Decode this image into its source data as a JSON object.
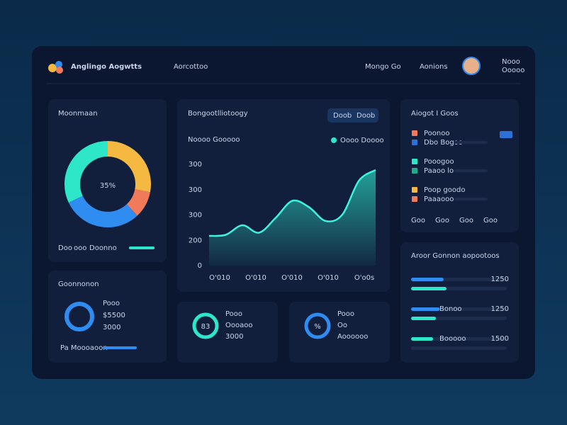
{
  "header": {
    "title": "Anglingo Aogwtts",
    "subtitle": "Aorcottoo",
    "nav": [
      "Mongo Go",
      "Aonions"
    ],
    "user": [
      "Nooo",
      "Ooooo"
    ]
  },
  "donut_card": {
    "title": "Moonmaan",
    "center": "35%",
    "segments": [
      {
        "value": 28,
        "color": "#f5b942"
      },
      {
        "value": 10,
        "color": "#f07a5a"
      },
      {
        "value": 30,
        "color": "#2f8cf0"
      },
      {
        "value": 32,
        "color": "#2ee6c8"
      }
    ],
    "footer": [
      "Doo",
      "ooo",
      "Doonno"
    ]
  },
  "stat_card": {
    "title": "Goonnonon",
    "lines": [
      "Pooo",
      "$5500",
      "3000"
    ],
    "footer": "Pa Moooaoon"
  },
  "area_card": {
    "title": "Bongootlliotoogy",
    "tabs": [
      "Doob",
      "Doob"
    ],
    "legend": [
      "Noooo Gooooo",
      "Oooo Doooo"
    ],
    "ytick_labels": [
      "300",
      "300",
      "300",
      "200",
      "0"
    ],
    "x_labels": [
      "O'010",
      "O'010",
      "O'010",
      "O'010",
      "O'o0s"
    ],
    "values": [
      28,
      29,
      38,
      31,
      45,
      61,
      55,
      42,
      48,
      80,
      90
    ],
    "ylim": [
      0,
      100
    ]
  },
  "mini_cards": [
    {
      "ring": "83",
      "lines": [
        "Pooo",
        "Oooaoo",
        "3000"
      ],
      "color": "#2ee6c8"
    },
    {
      "ring": "%",
      "lines": [
        "Pooo",
        "Oo",
        "Aoooooo"
      ],
      "color": "#2f8cf0"
    }
  ],
  "list_card": {
    "title": "Aiogot I Goos",
    "items": [
      {
        "label": "Poonoo",
        "color": "#f07a5a"
      },
      {
        "label": "Dbo Bogoo",
        "color": "#2f6fd8"
      },
      {
        "label": "Pooogoo",
        "color": "#2ee6c8"
      },
      {
        "label": "Paaoo lo",
        "color": "#1fae8a"
      },
      {
        "label": "Poop goodo",
        "color": "#f5b942"
      },
      {
        "label": "Paaaooo",
        "color": "#f07a5a"
      }
    ],
    "footer": [
      "Goo",
      "Goo",
      "Goo",
      "Goo"
    ]
  },
  "bars_card": {
    "title": "Aroor Gonnon aopootoos",
    "groups": [
      {
        "value_label": "1250",
        "bars": [
          {
            "value": 34,
            "color": "#2f8cf0"
          },
          {
            "value": 37,
            "color": "#2ee6c8"
          }
        ]
      },
      {
        "label": "Bonoo",
        "value_label": "1250",
        "bars": [
          {
            "value": 30,
            "color": "#2f8cf0"
          },
          {
            "value": 26,
            "color": "#2ee6c8"
          }
        ]
      },
      {
        "label": "Booooo",
        "value_label": "1500",
        "bars": [
          {
            "value": 23,
            "color": "#2ee6c8"
          },
          {
            "value": 0,
            "color": "#2f8cf0"
          }
        ]
      }
    ]
  }
}
